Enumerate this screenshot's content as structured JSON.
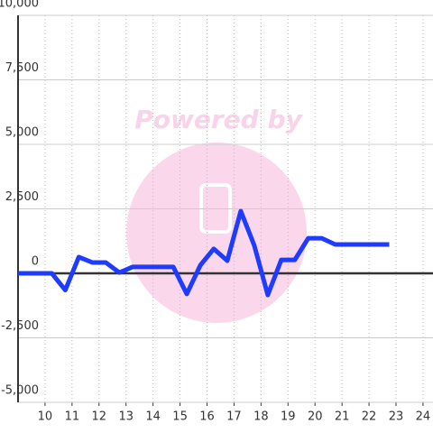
{
  "chart_data": {
    "type": "line",
    "watermark": "Powered by",
    "x": [
      9,
      10.25,
      10.75,
      11.25,
      11.75,
      12.25,
      12.75,
      13.25,
      13.75,
      14.25,
      14.75,
      15.25,
      15.75,
      16.25,
      16.75,
      17.25,
      17.75,
      18.25,
      18.75,
      19.25,
      19.75,
      20.25,
      20.75,
      21.25,
      21.75,
      22.25,
      22.75
    ],
    "series": [
      {
        "color": "#1f3bff",
        "values": [
          0,
          0,
          -650,
          630,
          420,
          420,
          30,
          250,
          250,
          250,
          250,
          -800,
          310,
          950,
          490,
          2410,
          1080,
          -840,
          520,
          520,
          1360,
          1360,
          1120,
          1120,
          1120,
          1120,
          1120
        ]
      }
    ],
    "xlim": [
      9,
      24.37
    ],
    "xticks": [
      10,
      11,
      12,
      13,
      14,
      15,
      16,
      17,
      18,
      19,
      20,
      21,
      22,
      23,
      24
    ],
    "ylim": [
      -5000,
      10000
    ],
    "yticks": [
      {
        "value": -5000,
        "label": "-5,000"
      },
      {
        "value": -2500,
        "label": "-2,500"
      },
      0,
      {
        "value": 2500,
        "label": "2,500"
      },
      {
        "value": 5000,
        "label": "5,000"
      },
      {
        "value": 7500,
        "label": "7,500"
      },
      {
        "value": 10000,
        "label": "10,000"
      }
    ],
    "grid": true
  }
}
